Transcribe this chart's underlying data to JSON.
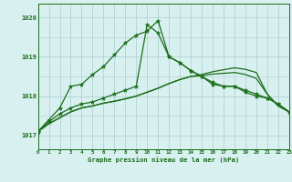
{
  "hours": [
    0,
    1,
    2,
    3,
    4,
    5,
    6,
    7,
    8,
    9,
    10,
    11,
    12,
    13,
    14,
    15,
    16,
    17,
    18,
    19,
    20,
    21,
    22,
    23
  ],
  "line_main": [
    1017.1,
    1017.4,
    1017.7,
    1018.25,
    1018.3,
    1018.55,
    1018.75,
    1019.05,
    1019.35,
    1019.55,
    1019.65,
    1019.92,
    1019.0,
    1018.85,
    1018.65,
    1018.5,
    1018.3,
    1018.25,
    1018.25,
    1018.1,
    1018.0,
    1017.95,
    1017.8,
    1017.6
  ],
  "line_spiky": [
    1017.1,
    1017.35,
    1017.55,
    1017.7,
    1017.8,
    1017.85,
    1017.95,
    1018.05,
    1018.15,
    1018.25,
    1019.82,
    1019.6,
    1019.0,
    1018.85,
    1018.65,
    1018.5,
    1018.35,
    1018.25,
    1018.25,
    1018.15,
    1018.05,
    1017.95,
    1017.8,
    1017.6
  ],
  "line_smooth1": [
    1017.1,
    1017.3,
    1017.45,
    1017.6,
    1017.7,
    1017.75,
    1017.82,
    1017.87,
    1017.93,
    1018.0,
    1018.1,
    1018.2,
    1018.32,
    1018.42,
    1018.5,
    1018.55,
    1018.62,
    1018.67,
    1018.72,
    1018.68,
    1018.6,
    1018.05,
    1017.75,
    1017.6
  ],
  "line_smooth2": [
    1017.1,
    1017.3,
    1017.45,
    1017.6,
    1017.7,
    1017.75,
    1017.82,
    1017.87,
    1017.93,
    1018.0,
    1018.1,
    1018.2,
    1018.32,
    1018.42,
    1018.5,
    1018.52,
    1018.56,
    1018.58,
    1018.6,
    1018.55,
    1018.45,
    1018.05,
    1017.75,
    1017.6
  ],
  "line_color": "#1a6e1a",
  "bg_color": "#d9f0f0",
  "grid_color": "#aacece",
  "axis_color": "#1a6e1a",
  "ylabel_ticks": [
    1017,
    1018,
    1019,
    1020
  ],
  "xlabel": "Graphe pression niveau de la mer (hPa)",
  "ylim": [
    1016.65,
    1020.35
  ],
  "xlim": [
    0,
    23
  ]
}
